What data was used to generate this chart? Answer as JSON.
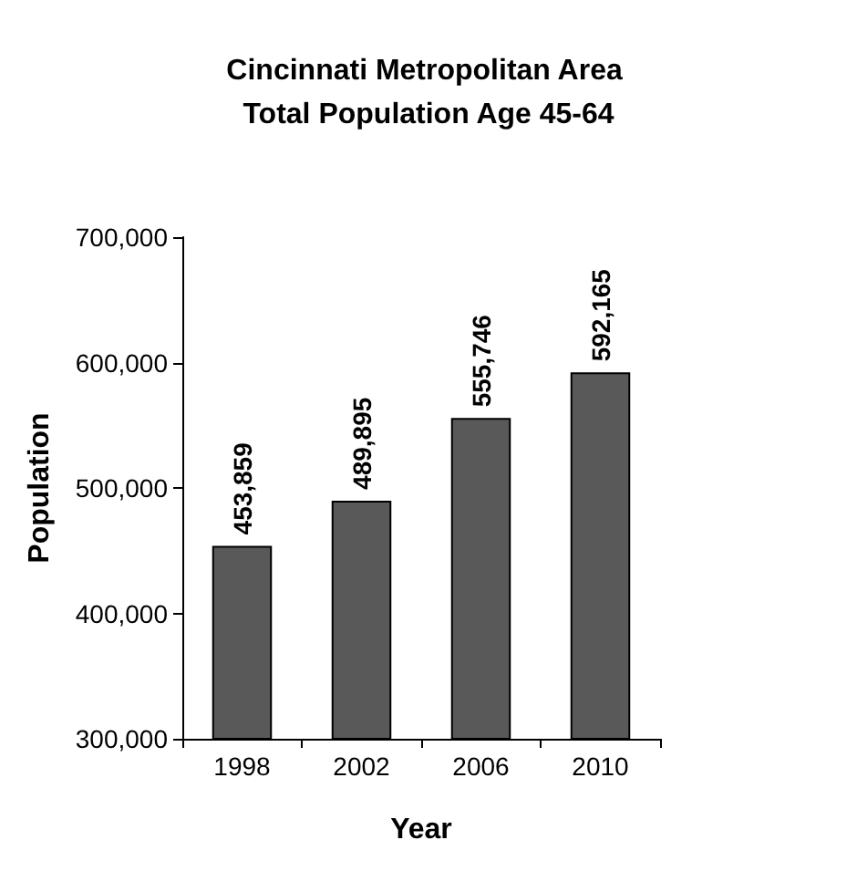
{
  "chart_data": {
    "type": "bar",
    "title": "Cincinnati Metropolitan Area Total Population Age 45-64",
    "xlabel": "Year",
    "ylabel": "Population",
    "categories": [
      "1998",
      "2002",
      "2006",
      "2010"
    ],
    "values": [
      453859,
      489895,
      555746,
      592165
    ],
    "value_labels": [
      "453,859",
      "489,895",
      "555,746",
      "592,165"
    ],
    "color": "#595959",
    "ylim": [
      300000,
      700000
    ],
    "yticks": [
      {
        "value": 300000,
        "label": "300,000"
      },
      {
        "value": 400000,
        "label": "400,000"
      },
      {
        "value": 500000,
        "label": "500,000"
      },
      {
        "value": 600000,
        "label": "600,000"
      },
      {
        "value": 700000,
        "label": "700,000"
      }
    ],
    "grid": false
  }
}
